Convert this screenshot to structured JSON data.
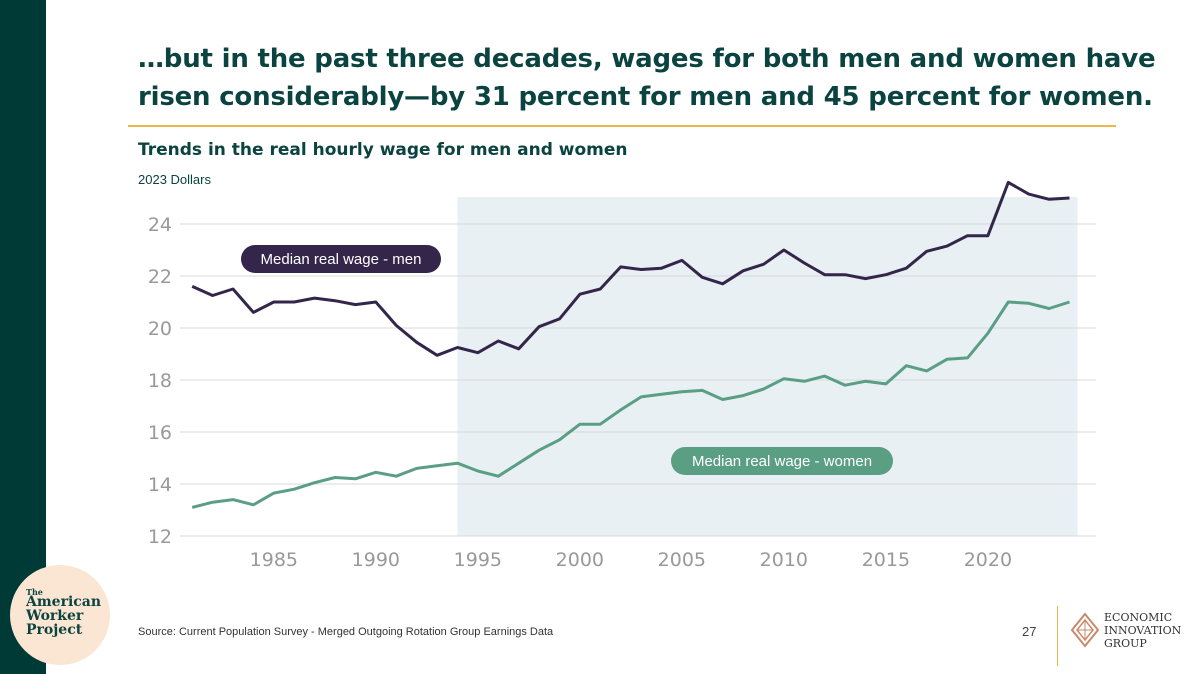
{
  "headline": {
    "line1": "…but in the past three decades, wages for both men and women have",
    "line2": "risen considerably—by 31 percent for men and 45 percent for women."
  },
  "chart_title": "Trends in the real hourly wage for men and women",
  "chart_subtitle": "2023 Dollars",
  "chart_data": {
    "type": "line",
    "title": "Trends in the real hourly wage for men and women",
    "subtitle": "2023 Dollars",
    "ylim": [
      12,
      25.5
    ],
    "xlim": [
      1980.4,
      2025.3
    ],
    "y_ticks": [
      12,
      14,
      16,
      18,
      20,
      22,
      24
    ],
    "x_ticks": [
      1985,
      1990,
      1995,
      2000,
      2005,
      2010,
      2015,
      2020
    ],
    "grid": true,
    "shaded_region": [
      1994,
      2024
    ],
    "colors": {
      "men": "#33264a",
      "women": "#5a9e84",
      "shade": "#e8f0f3",
      "grid": "#d9d9d9",
      "axis_text": "#999999"
    },
    "x": [
      1981,
      1982,
      1983,
      1984,
      1985,
      1986,
      1987,
      1988,
      1989,
      1990,
      1991,
      1992,
      1993,
      1994,
      1995,
      1996,
      1997,
      1998,
      1999,
      2000,
      2001,
      2002,
      2003,
      2004,
      2005,
      2006,
      2007,
      2008,
      2009,
      2010,
      2011,
      2012,
      2013,
      2014,
      2015,
      2016,
      2017,
      2018,
      2019,
      2020,
      2021,
      2022,
      2023,
      2024
    ],
    "series": [
      {
        "name": "Median real wage - men",
        "values": [
          21.6,
          21.25,
          21.5,
          20.6,
          21.0,
          21.0,
          21.15,
          21.05,
          20.9,
          21.0,
          20.1,
          19.45,
          18.95,
          19.25,
          19.05,
          19.5,
          19.2,
          20.05,
          20.35,
          21.3,
          21.5,
          22.35,
          22.25,
          22.3,
          22.6,
          21.95,
          21.7,
          22.2,
          22.45,
          23.0,
          22.5,
          22.05,
          22.05,
          21.9,
          22.05,
          22.3,
          22.95,
          23.15,
          23.55,
          23.55,
          25.6,
          25.15,
          24.95,
          25.0
        ]
      },
      {
        "name": "Median real wage - women",
        "values": [
          13.1,
          13.3,
          13.4,
          13.2,
          13.65,
          13.8,
          14.05,
          14.25,
          14.2,
          14.45,
          14.3,
          14.6,
          14.7,
          14.8,
          14.5,
          14.3,
          14.8,
          15.3,
          15.7,
          16.3,
          16.3,
          16.85,
          17.35,
          17.45,
          17.55,
          17.6,
          17.25,
          17.4,
          17.65,
          18.05,
          17.95,
          18.15,
          17.8,
          17.95,
          17.85,
          18.55,
          18.35,
          18.8,
          18.85,
          19.8,
          21.0,
          20.95,
          20.75,
          21.0
        ]
      }
    ]
  },
  "labels": {
    "men": "Median real wage - men",
    "women": "Median real wage - women"
  },
  "logo": {
    "small": "The",
    "line1": "American",
    "line2": "Worker",
    "line3": "Project"
  },
  "source": "Source: Current Population Survey - Merged Outgoing Rotation Group Earnings Data",
  "page_number": "27",
  "eig": {
    "line1": "ECONOMIC",
    "line2": "INNOVATION",
    "line3": "GROUP"
  }
}
